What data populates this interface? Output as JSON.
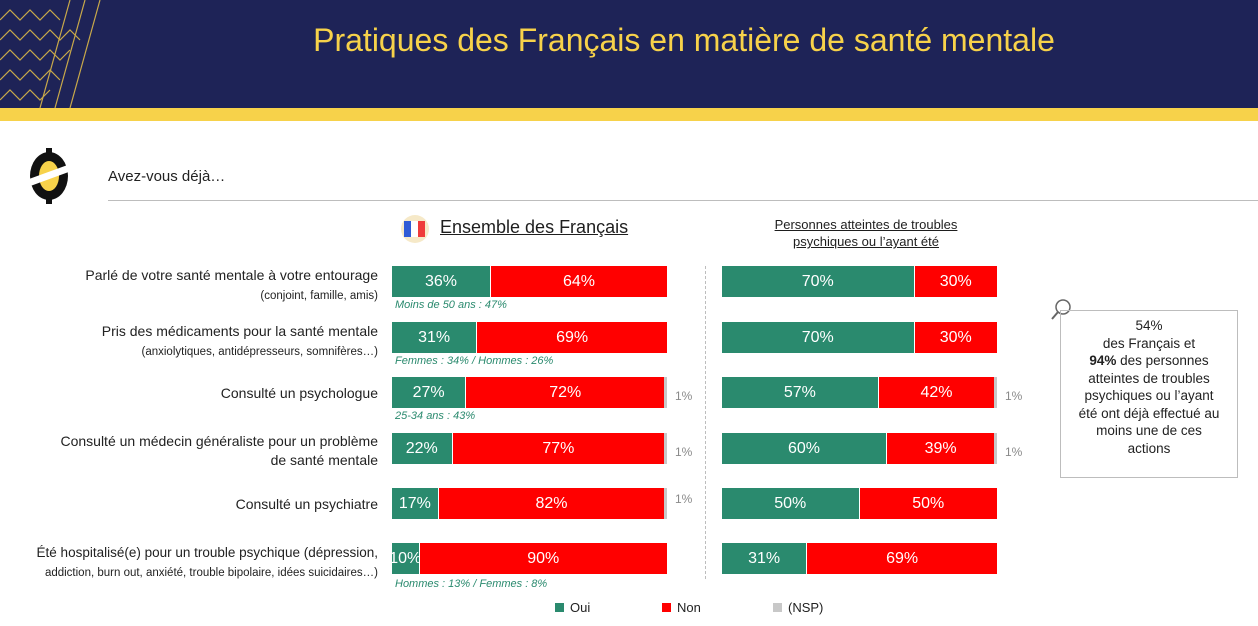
{
  "header": {
    "title": "Pratiques des Français en matière de santé mentale"
  },
  "question": "Avez-vous déjà…",
  "columns": [
    {
      "title": "Ensemble des Français"
    },
    {
      "title_line1": "Personnes atteintes de troubles ",
      "title_line2": "psychiques ou l’ayant été"
    }
  ],
  "rows": [
    {
      "label_main": "Parlé de votre santé mentale à votre entourage",
      "label_sub": "(conjoint, famille, amis)",
      "note": "Moins de 50 ans : 47%"
    },
    {
      "label_main": "Pris des médicaments pour la santé mentale",
      "label_sub": "(anxiolytiques, antidépresseurs, somnifères…)",
      "note": "Femmes : 34% / Hommes : 26%"
    },
    {
      "label_main": "Consulté un psychologue",
      "label_sub": "",
      "note": "25-34 ans : 43%"
    },
    {
      "label_main": "Consulté un médecin généraliste pour un problème",
      "label_sub": "de santé mentale",
      "note": ""
    },
    {
      "label_main": "Consulté un psychiatre",
      "label_sub": "",
      "note": ""
    },
    {
      "label_main": "Été hospitalisé(e) pour un trouble psychique (dépression,",
      "label_sub": "addiction, burn out, anxiété, trouble bipolaire, idées suicidaires…)",
      "note": "Hommes : 13% / Femmes : 8%"
    }
  ],
  "sidebox": {
    "line1": "54%",
    "line2": "des Français et",
    "line3_bold": "94%",
    "line3_rest": " des personnes",
    "line4": "atteintes de troubles",
    "line5": "psychiques ou l’ayant",
    "line6": "été ont déjà effectué au",
    "line7": "moins une de ces",
    "line8": "actions"
  },
  "legend": {
    "oui": "Oui",
    "non": "Non",
    "nsp": "(NSP)"
  },
  "colors": {
    "oui": "#2a8a6e",
    "non": "#ff0000",
    "nsp": "#c8c8c8",
    "header": "#1e2357",
    "accent": "#f7d24a"
  },
  "chart_data": {
    "type": "bar",
    "orientation": "horizontal-stacked-100",
    "categories": [
      "Parlé de votre santé mentale à votre entourage",
      "Pris des médicaments pour la santé mentale",
      "Consulté un psychologue",
      "Consulté un médecin généraliste pour un problème de santé mentale",
      "Consulté un psychiatre",
      "Été hospitalisé(e) pour un trouble psychique"
    ],
    "groups": [
      {
        "title": "Ensemble des Français",
        "series": [
          {
            "name": "Oui",
            "values": [
              36,
              31,
              27,
              22,
              17,
              10
            ]
          },
          {
            "name": "Non",
            "values": [
              64,
              69,
              72,
              77,
              82,
              90
            ]
          },
          {
            "name": "(NSP)",
            "values": [
              0,
              0,
              1,
              1,
              1,
              0
            ]
          }
        ]
      },
      {
        "title": "Personnes atteintes de troubles psychiques ou l’ayant été",
        "series": [
          {
            "name": "Oui",
            "values": [
              70,
              70,
              57,
              60,
              50,
              31
            ]
          },
          {
            "name": "Non",
            "values": [
              30,
              30,
              42,
              39,
              50,
              69
            ]
          },
          {
            "name": "(NSP)",
            "values": [
              0,
              0,
              1,
              1,
              0,
              0
            ]
          }
        ]
      }
    ],
    "value_suffix": "%",
    "xlim": [
      0,
      100
    ],
    "legend_position": "bottom"
  }
}
